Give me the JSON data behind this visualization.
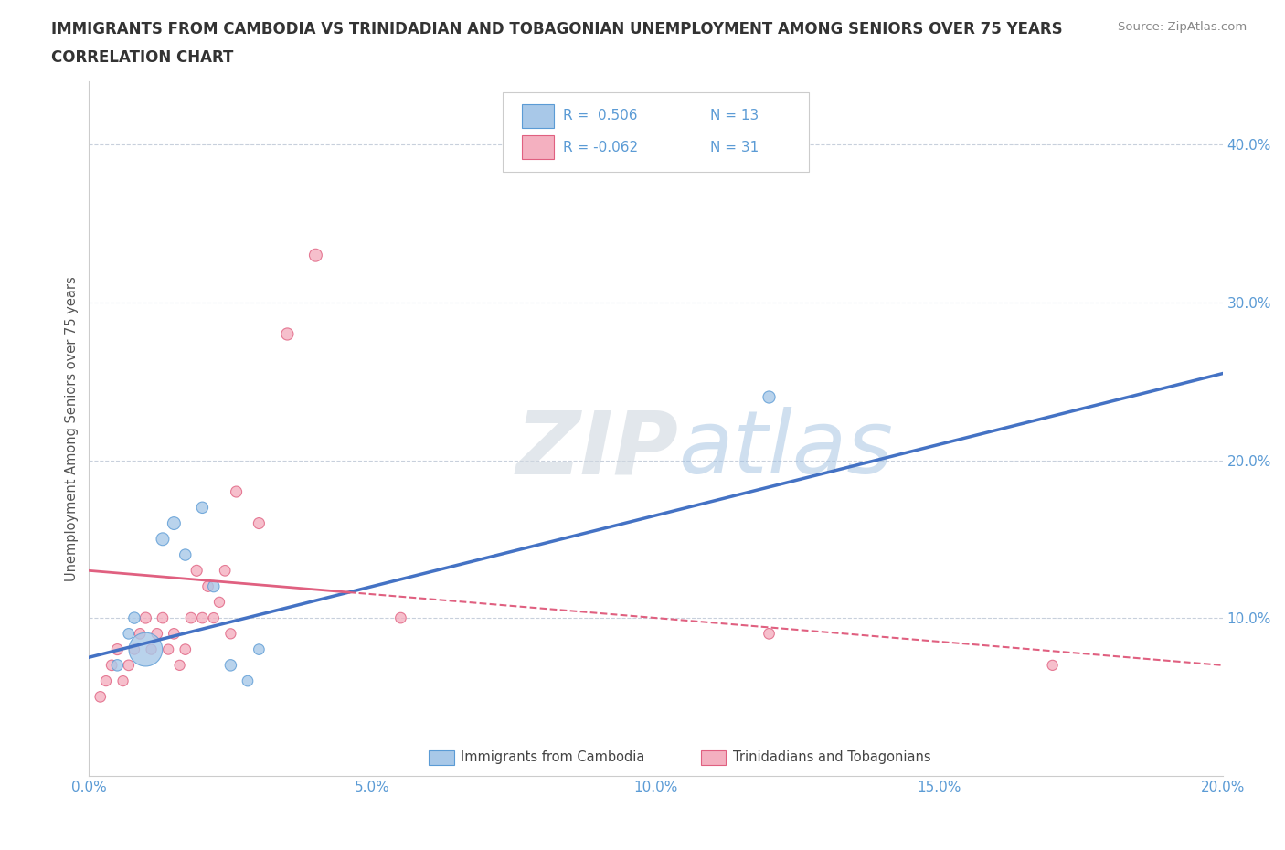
{
  "title_line1": "IMMIGRANTS FROM CAMBODIA VS TRINIDADIAN AND TOBAGONIAN UNEMPLOYMENT AMONG SENIORS OVER 75 YEARS",
  "title_line2": "CORRELATION CHART",
  "source_text": "Source: ZipAtlas.com",
  "ylabel": "Unemployment Among Seniors over 75 years",
  "xlim": [
    0.0,
    0.2
  ],
  "ylim": [
    0.0,
    0.44
  ],
  "xticks": [
    0.0,
    0.05,
    0.1,
    0.15,
    0.2
  ],
  "yticks": [
    0.1,
    0.2,
    0.3,
    0.4
  ],
  "ytick_labels": [
    "10.0%",
    "20.0%",
    "30.0%",
    "40.0%"
  ],
  "xtick_labels": [
    "0.0%",
    "5.0%",
    "10.0%",
    "15.0%",
    "20.0%"
  ],
  "watermark_zip": "ZIP",
  "watermark_atlas": "atlas",
  "legend_r1": "R =  0.506",
  "legend_n1": "N = 13",
  "legend_r2": "R = -0.062",
  "legend_n2": "N = 31",
  "color_blue": "#a8c8e8",
  "color_pink": "#f4b0c0",
  "color_blue_edge": "#5b9bd5",
  "color_pink_edge": "#e06080",
  "color_blue_line": "#4472c4",
  "color_pink_line": "#e06080",
  "background_color": "#ffffff",
  "grid_color": "#c8d0dc",
  "cam_x": [
    0.005,
    0.007,
    0.008,
    0.01,
    0.013,
    0.015,
    0.017,
    0.02,
    0.022,
    0.025,
    0.028,
    0.03,
    0.12
  ],
  "cam_y": [
    0.07,
    0.09,
    0.1,
    0.08,
    0.15,
    0.16,
    0.14,
    0.17,
    0.12,
    0.07,
    0.06,
    0.08,
    0.24
  ],
  "cam_s": [
    80,
    70,
    80,
    700,
    100,
    100,
    80,
    80,
    80,
    80,
    70,
    70,
    90
  ],
  "tri_x": [
    0.002,
    0.003,
    0.004,
    0.005,
    0.006,
    0.007,
    0.008,
    0.009,
    0.01,
    0.011,
    0.012,
    0.013,
    0.014,
    0.015,
    0.016,
    0.017,
    0.018,
    0.019,
    0.02,
    0.021,
    0.022,
    0.023,
    0.024,
    0.025,
    0.026,
    0.03,
    0.035,
    0.04,
    0.055,
    0.12,
    0.17
  ],
  "tri_y": [
    0.05,
    0.06,
    0.07,
    0.08,
    0.06,
    0.07,
    0.08,
    0.09,
    0.1,
    0.08,
    0.09,
    0.1,
    0.08,
    0.09,
    0.07,
    0.08,
    0.1,
    0.13,
    0.1,
    0.12,
    0.1,
    0.11,
    0.13,
    0.09,
    0.18,
    0.16,
    0.28,
    0.33,
    0.1,
    0.09,
    0.07
  ],
  "tri_s": [
    70,
    65,
    70,
    75,
    65,
    70,
    65,
    70,
    75,
    65,
    70,
    70,
    65,
    70,
    65,
    70,
    70,
    75,
    70,
    70,
    65,
    65,
    70,
    65,
    75,
    75,
    90,
    100,
    70,
    70,
    65
  ]
}
